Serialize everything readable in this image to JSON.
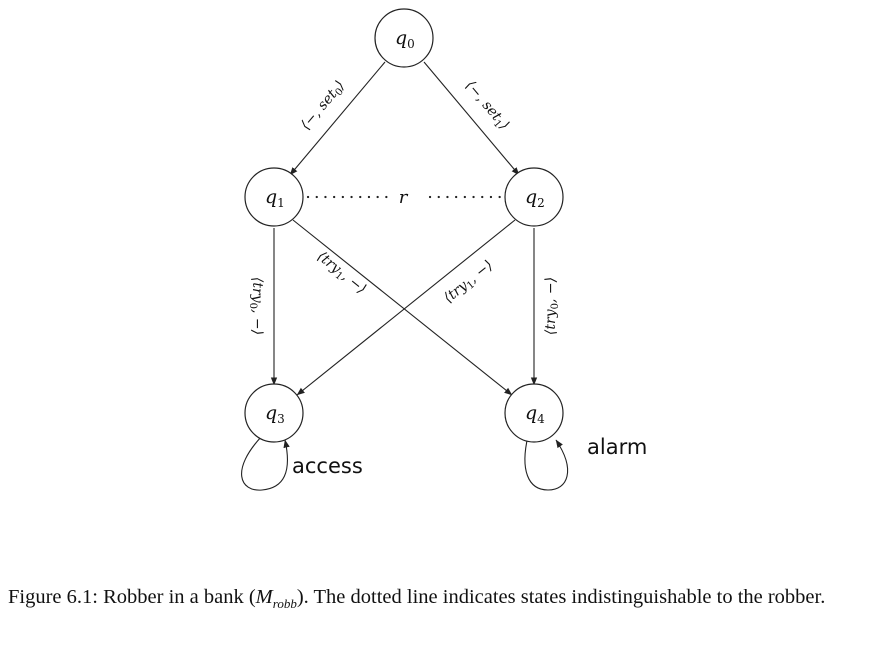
{
  "states": [
    {
      "id": "q0",
      "label": "q",
      "sub": "0"
    },
    {
      "id": "q1",
      "label": "q",
      "sub": "1"
    },
    {
      "id": "q2",
      "label": "q",
      "sub": "2"
    },
    {
      "id": "q3",
      "label": "q",
      "sub": "3"
    },
    {
      "id": "q4",
      "label": "q",
      "sub": "4"
    }
  ],
  "edges": [
    {
      "from": "q0",
      "to": "q1",
      "label_pre": "⟨−, set",
      "label_sub": "0",
      "label_post": "⟩"
    },
    {
      "from": "q0",
      "to": "q2",
      "label_pre": "⟨−, set",
      "label_sub": "1",
      "label_post": "⟩"
    },
    {
      "from": "q1",
      "to": "q3",
      "label_pre": "⟨try",
      "label_sub": "0",
      "label_post": ", −⟩"
    },
    {
      "from": "q1",
      "to": "q4",
      "label_pre": "⟨try",
      "label_sub": "1",
      "label_post": ", −⟩"
    },
    {
      "from": "q2",
      "to": "q3",
      "label_pre": "⟨try",
      "label_sub": "1",
      "label_post": ", −⟩"
    },
    {
      "from": "q2",
      "to": "q4",
      "label_pre": "⟨try",
      "label_sub": "0",
      "label_post": ", −⟩"
    }
  ],
  "indistinguishable": {
    "between": [
      "q1",
      "q2"
    ],
    "label": "r"
  },
  "propositions": {
    "q3": "access",
    "q4": "alarm"
  },
  "caption": {
    "prefix": "Figure 6.1: Robber in a bank (",
    "model": "M",
    "model_sub": "robb",
    "suffix": "). The dotted line indicates states indistinguishable to the robber."
  }
}
